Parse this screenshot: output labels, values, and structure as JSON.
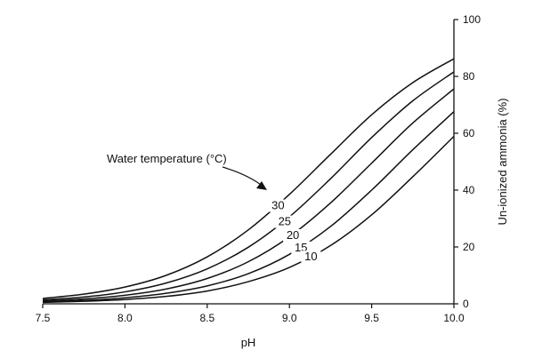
{
  "chart_data": {
    "type": "line",
    "xlabel": "pH",
    "ylabel": "Un-ionized ammonia (%)",
    "xlim": [
      7.5,
      10.0
    ],
    "ylim": [
      0,
      100
    ],
    "xticks": [
      "7.5",
      "8.0",
      "8.5",
      "9.0",
      "9.5",
      "10.0"
    ],
    "yticks": [
      "0",
      "20",
      "40",
      "60",
      "80",
      "100"
    ],
    "y_axis_side": "right",
    "grid": false,
    "annotation": "Water temperature (°C)",
    "x": [
      7.5,
      7.75,
      8.0,
      8.25,
      8.5,
      8.75,
      9.0,
      9.25,
      9.5,
      9.75,
      10.0
    ],
    "series": [
      {
        "name": "30",
        "values": [
          1.9,
          3.4,
          5.9,
          10.0,
          16.5,
          26.0,
          38.5,
          52.6,
          66.5,
          77.8,
          86.2
        ]
      },
      {
        "name": "25",
        "values": [
          1.4,
          2.4,
          4.2,
          7.3,
          12.3,
          19.9,
          30.6,
          44.0,
          58.5,
          71.4,
          81.6
        ]
      },
      {
        "name": "20",
        "values": [
          1.0,
          1.7,
          3.0,
          5.2,
          8.9,
          14.8,
          23.6,
          35.5,
          49.5,
          63.6,
          75.6
        ]
      },
      {
        "name": "15",
        "values": [
          0.7,
          1.2,
          2.1,
          3.7,
          6.3,
          10.6,
          17.4,
          27.2,
          40.0,
          54.2,
          67.6
        ]
      },
      {
        "name": "10",
        "values": [
          0.5,
          0.9,
          1.5,
          2.6,
          4.5,
          7.8,
          12.8,
          20.5,
          31.3,
          44.7,
          58.9
        ]
      }
    ]
  }
}
